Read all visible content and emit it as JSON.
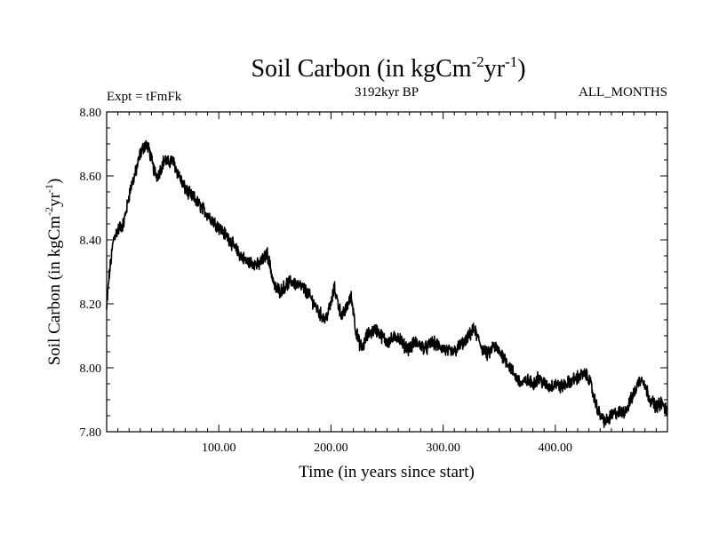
{
  "chart_data": {
    "type": "line",
    "title": {
      "main": "Soil Carbon (in kgCm",
      "sup1": "-2",
      "mid": "yr",
      "sup2": "-1",
      "end": ")"
    },
    "subtitle_left": "Expt = tFmFk",
    "subtitle_center": "3192kyr BP",
    "subtitle_right": "ALL_MONTHS",
    "xlabel": "Time (in years since start)",
    "ylabel": {
      "main": "Soil Carbon (in kgCm",
      "sup1": "-2",
      "mid": "yr",
      "sup2": "-1",
      "end": ")"
    },
    "xlim": [
      0,
      500
    ],
    "ylim": [
      7.8,
      8.8
    ],
    "x_ticks": [
      {
        "value": 100,
        "label": "100.00"
      },
      {
        "value": 200,
        "label": "200.00"
      },
      {
        "value": 300,
        "label": "300.00"
      },
      {
        "value": 400,
        "label": "400.00"
      }
    ],
    "y_ticks": [
      {
        "value": 7.8,
        "label": "7.80"
      },
      {
        "value": 8.0,
        "label": "8.00"
      },
      {
        "value": 8.2,
        "label": "8.20"
      },
      {
        "value": 8.4,
        "label": "8.40"
      },
      {
        "value": 8.6,
        "label": "8.60"
      },
      {
        "value": 8.8,
        "label": "8.80"
      }
    ],
    "series": [
      {
        "name": "Soil Carbon",
        "color": "#000000",
        "x": [
          0,
          2,
          4,
          6,
          8,
          10,
          12,
          15,
          18,
          20,
          22,
          25,
          28,
          30,
          33,
          35,
          38,
          40,
          42,
          45,
          48,
          50,
          52,
          55,
          58,
          60,
          62,
          65,
          68,
          70,
          72,
          75,
          78,
          80,
          85,
          90,
          95,
          100,
          105,
          110,
          115,
          120,
          125,
          130,
          135,
          140,
          143,
          145,
          148,
          150,
          155,
          160,
          165,
          170,
          175,
          180,
          185,
          190,
          195,
          200,
          203,
          205,
          208,
          210,
          213,
          215,
          218,
          220,
          222,
          225,
          228,
          230,
          232,
          235,
          240,
          245,
          250,
          255,
          260,
          265,
          270,
          275,
          280,
          285,
          290,
          295,
          300,
          305,
          310,
          315,
          320,
          325,
          328,
          330,
          335,
          340,
          345,
          350,
          355,
          360,
          365,
          370,
          375,
          380,
          385,
          390,
          395,
          400,
          405,
          410,
          415,
          420,
          425,
          430,
          435,
          440,
          445,
          450,
          455,
          460,
          465,
          470,
          475,
          478,
          480,
          485,
          490,
          495,
          500
        ],
        "values": [
          8.18,
          8.28,
          8.34,
          8.4,
          8.42,
          8.43,
          8.44,
          8.45,
          8.5,
          8.54,
          8.57,
          8.6,
          8.64,
          8.67,
          8.69,
          8.7,
          8.68,
          8.65,
          8.62,
          8.6,
          8.62,
          8.64,
          8.65,
          8.64,
          8.65,
          8.64,
          8.62,
          8.6,
          8.57,
          8.56,
          8.55,
          8.54,
          8.53,
          8.52,
          8.5,
          8.48,
          8.46,
          8.44,
          8.42,
          8.4,
          8.37,
          8.35,
          8.33,
          8.33,
          8.32,
          8.34,
          8.36,
          8.33,
          8.28,
          8.25,
          8.24,
          8.26,
          8.27,
          8.26,
          8.25,
          8.23,
          8.2,
          8.17,
          8.15,
          8.2,
          8.25,
          8.22,
          8.18,
          8.16,
          8.18,
          8.2,
          8.22,
          8.18,
          8.12,
          8.08,
          8.06,
          8.08,
          8.1,
          8.11,
          8.12,
          8.1,
          8.08,
          8.09,
          8.1,
          8.07,
          8.06,
          8.08,
          8.07,
          8.06,
          8.08,
          8.07,
          8.06,
          8.05,
          8.05,
          8.07,
          8.08,
          8.11,
          8.12,
          8.1,
          8.06,
          8.04,
          8.07,
          8.05,
          8.03,
          8.0,
          7.97,
          7.95,
          7.96,
          7.95,
          7.97,
          7.95,
          7.94,
          7.95,
          7.94,
          7.95,
          7.96,
          7.97,
          7.98,
          7.97,
          7.9,
          7.85,
          7.83,
          7.85,
          7.86,
          7.86,
          7.88,
          7.92,
          7.96,
          7.97,
          7.94,
          7.9,
          7.88,
          7.89,
          7.86
        ]
      }
    ]
  }
}
